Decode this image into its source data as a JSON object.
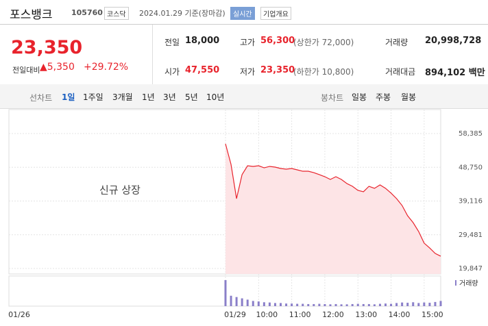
{
  "header": {
    "name": "포스뱅크",
    "code": "105760",
    "market": "코스닥",
    "date": "2024.01.29 기준(장마감)",
    "realtime": "실시간",
    "company_info": "기업개요"
  },
  "quote": {
    "price": "23,350",
    "change_label": "전일대비",
    "change": "▲5,350",
    "change_pct": "+29.72%",
    "stats": [
      {
        "label": "전일",
        "value": "18,000"
      },
      {
        "label": "고가",
        "value": "56,300",
        "extra": "(상한가 72,000)"
      },
      {
        "label": "거래량",
        "value": "20,998,728"
      },
      {
        "label": "시가",
        "value": "47,550"
      },
      {
        "label": "저가",
        "value": "23,350",
        "extra": "(하한가 10,800)"
      },
      {
        "label": "거래대금",
        "value": "894,102 백만"
      }
    ]
  },
  "tabs": {
    "line_label": "선차트",
    "line": [
      "1일",
      "1주일",
      "3개월",
      "1년",
      "3년",
      "5년",
      "10년"
    ],
    "candle_label": "봉차트",
    "candle": [
      "일봉",
      "주봉",
      "월봉"
    ]
  },
  "chart_data": {
    "type": "line",
    "annotation": "신규 상장",
    "volume_label": "거래량",
    "prev_date": "01/26",
    "color": "#e8232c",
    "area_color": "#fde4e6",
    "volume_color": "#8a7fc9",
    "categories": [
      "01/29",
      null,
      null,
      null,
      null,
      null,
      "10:00",
      null,
      null,
      null,
      null,
      null,
      "11:00",
      null,
      null,
      null,
      null,
      null,
      "12:00",
      null,
      null,
      null,
      null,
      null,
      "13:00",
      null,
      null,
      null,
      null,
      null,
      "14:00",
      null,
      null,
      null,
      null,
      null,
      "15:00",
      null,
      null,
      null
    ],
    "values": [
      55450,
      49580,
      39800,
      46650,
      49190,
      49000,
      49190,
      48600,
      49000,
      48800,
      48410,
      48210,
      48410,
      48020,
      47620,
      47620,
      47230,
      46650,
      46060,
      45280,
      46060,
      45280,
      44100,
      43320,
      42150,
      41760,
      43320,
      42740,
      43710,
      42740,
      41370,
      39800,
      37840,
      34910,
      32950,
      30410,
      27080,
      25710,
      24150,
      23350
    ],
    "volume": [
      100,
      40,
      35,
      30,
      25,
      20,
      18,
      15,
      14,
      12,
      12,
      10,
      10,
      9,
      9,
      8,
      8,
      9,
      8,
      7,
      8,
      7,
      7,
      8,
      9,
      8,
      8,
      7,
      9,
      10,
      9,
      12,
      14,
      13,
      15,
      12,
      14,
      13,
      16,
      20
    ],
    "ylim": [
      19847,
      58385
    ],
    "yticks": [
      {
        "value": 19847,
        "label": "19,847"
      },
      {
        "value": 29481,
        "label": "29,481"
      },
      {
        "value": 39116,
        "label": "39,116"
      },
      {
        "value": 48750,
        "label": "48,750"
      },
      {
        "value": 58385,
        "label": "58,385"
      }
    ],
    "grid": true
  }
}
